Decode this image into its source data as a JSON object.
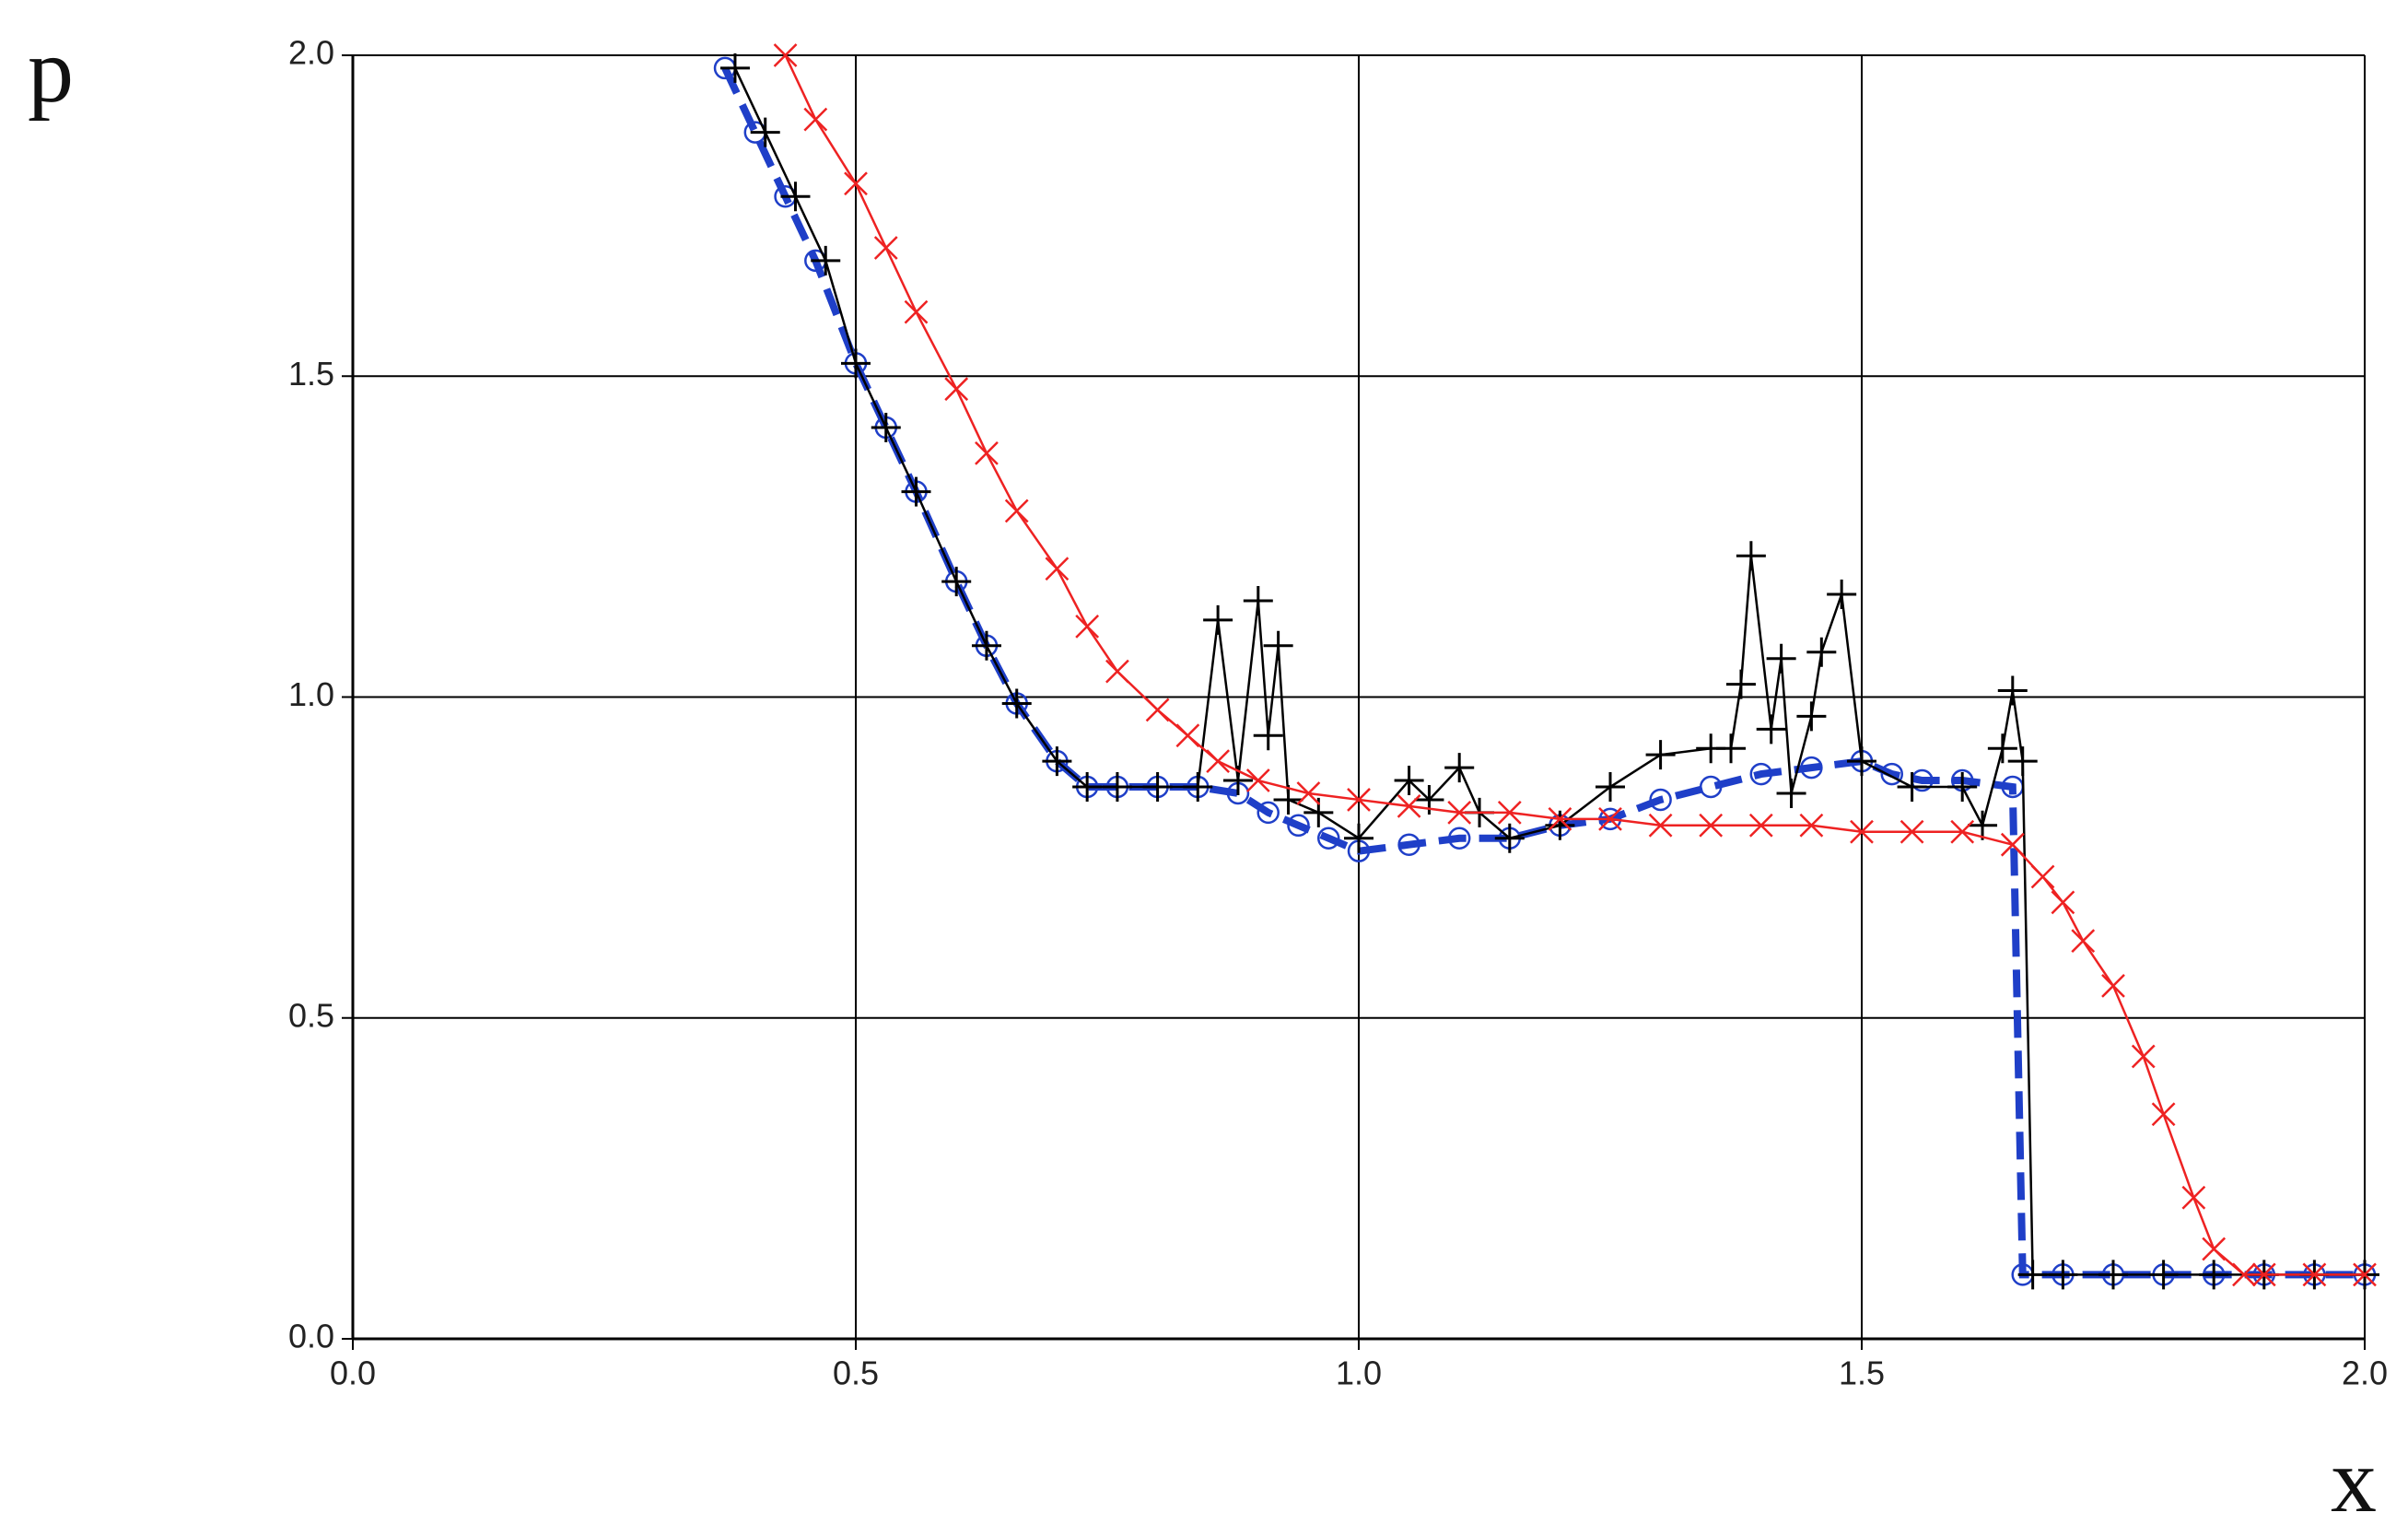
{
  "chart_data": {
    "type": "line",
    "x_label": "x",
    "y_label": "p",
    "xlim": [
      0,
      2
    ],
    "ylim": [
      0,
      2
    ],
    "xticks": [
      {
        "value": 0,
        "label": "0.0"
      },
      {
        "value": 0.5,
        "label": "0.5"
      },
      {
        "value": 1,
        "label": "1.0"
      },
      {
        "value": 1.5,
        "label": "1.5"
      },
      {
        "value": 2,
        "label": "2.0"
      }
    ],
    "yticks": [
      {
        "value": 0,
        "label": "0.0"
      },
      {
        "value": 0.5,
        "label": "0.5"
      },
      {
        "value": 1,
        "label": "1.0"
      },
      {
        "value": 1.5,
        "label": "1.5"
      },
      {
        "value": 2,
        "label": "2.0"
      }
    ],
    "grid": true,
    "series": [
      {
        "color": "#1f3fc8",
        "marker": "circle",
        "dash": true,
        "x": [
          0.37,
          0.4,
          0.43,
          0.46,
          0.5,
          0.53,
          0.56,
          0.6,
          0.63,
          0.66,
          0.7,
          0.73,
          0.76,
          0.8,
          0.84,
          0.88,
          0.91,
          0.94,
          0.97,
          1.0,
          1.05,
          1.1,
          1.15,
          1.2,
          1.25,
          1.3,
          1.35,
          1.4,
          1.45,
          1.5,
          1.53,
          1.56,
          1.6,
          1.65,
          1.66,
          1.7,
          1.75,
          1.8,
          1.85,
          1.9,
          1.95,
          2.0
        ],
        "values": [
          1.98,
          1.88,
          1.78,
          1.68,
          1.52,
          1.42,
          1.32,
          1.18,
          1.08,
          0.99,
          0.9,
          0.86,
          0.86,
          0.86,
          0.86,
          0.85,
          0.82,
          0.8,
          0.78,
          0.76,
          0.77,
          0.78,
          0.78,
          0.8,
          0.81,
          0.84,
          0.86,
          0.88,
          0.89,
          0.9,
          0.88,
          0.87,
          0.87,
          0.86,
          0.1,
          0.1,
          0.1,
          0.1,
          0.1,
          0.1,
          0.1,
          0.1
        ]
      },
      {
        "color": "#000000",
        "marker": "plus",
        "dash": false,
        "x": [
          0.38,
          0.41,
          0.44,
          0.47,
          0.5,
          0.53,
          0.56,
          0.6,
          0.63,
          0.66,
          0.7,
          0.73,
          0.76,
          0.8,
          0.84,
          0.86,
          0.88,
          0.9,
          0.91,
          0.92,
          0.93,
          0.96,
          1.0,
          1.05,
          1.07,
          1.1,
          1.12,
          1.15,
          1.2,
          1.25,
          1.3,
          1.35,
          1.37,
          1.38,
          1.39,
          1.41,
          1.42,
          1.43,
          1.45,
          1.46,
          1.48,
          1.5,
          1.55,
          1.6,
          1.62,
          1.64,
          1.65,
          1.66,
          1.67,
          1.7,
          1.75,
          1.8,
          1.85,
          1.9,
          1.95,
          2.0
        ],
        "values": [
          1.98,
          1.88,
          1.78,
          1.68,
          1.52,
          1.42,
          1.32,
          1.18,
          1.08,
          0.99,
          0.9,
          0.86,
          0.86,
          0.86,
          0.86,
          1.12,
          0.87,
          1.15,
          0.94,
          1.08,
          0.84,
          0.82,
          0.78,
          0.87,
          0.84,
          0.89,
          0.82,
          0.78,
          0.8,
          0.86,
          0.91,
          0.92,
          0.92,
          1.02,
          1.22,
          0.95,
          1.06,
          0.85,
          0.97,
          1.07,
          1.16,
          0.9,
          0.86,
          0.86,
          0.8,
          0.92,
          1.01,
          0.9,
          0.1,
          0.1,
          0.1,
          0.1,
          0.1,
          0.1,
          0.1,
          0.1
        ]
      },
      {
        "color": "#ee2222",
        "marker": "cross",
        "dash": false,
        "x": [
          0.43,
          0.46,
          0.5,
          0.53,
          0.56,
          0.6,
          0.63,
          0.66,
          0.7,
          0.73,
          0.76,
          0.8,
          0.83,
          0.86,
          0.9,
          0.95,
          1.0,
          1.05,
          1.1,
          1.15,
          1.2,
          1.25,
          1.3,
          1.35,
          1.4,
          1.45,
          1.5,
          1.55,
          1.6,
          1.65,
          1.68,
          1.7,
          1.72,
          1.75,
          1.78,
          1.8,
          1.83,
          1.85,
          1.88,
          1.9,
          1.95,
          2.0
        ],
        "values": [
          2.0,
          1.9,
          1.8,
          1.7,
          1.6,
          1.48,
          1.38,
          1.29,
          1.2,
          1.11,
          1.04,
          0.98,
          0.94,
          0.9,
          0.87,
          0.85,
          0.84,
          0.83,
          0.82,
          0.82,
          0.81,
          0.81,
          0.8,
          0.8,
          0.8,
          0.8,
          0.79,
          0.79,
          0.79,
          0.77,
          0.72,
          0.68,
          0.62,
          0.55,
          0.44,
          0.35,
          0.22,
          0.14,
          0.1,
          0.1,
          0.1,
          0.1
        ]
      }
    ]
  }
}
